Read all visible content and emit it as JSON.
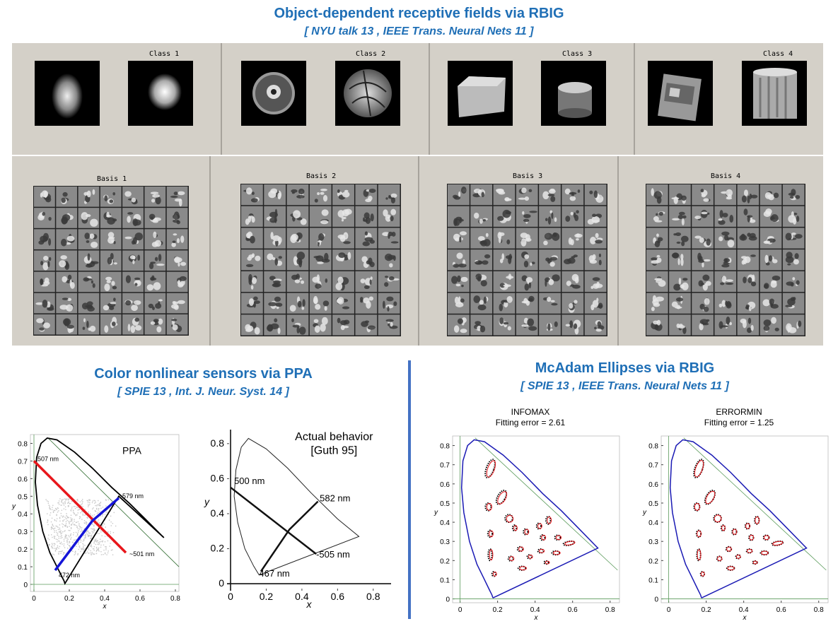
{
  "header": {
    "title": "Object-dependent receptive fields via RBIG",
    "subtitle": "[ NYU talk 13 ,  IEEE Trans. Neural Nets 11 ]"
  },
  "classes": [
    {
      "label": "Class 1"
    },
    {
      "label": "Class 2"
    },
    {
      "label": "Class 3"
    },
    {
      "label": "Class 4"
    }
  ],
  "bases": [
    {
      "label": "Basis 1"
    },
    {
      "label": "Basis 2"
    },
    {
      "label": "Basis 3"
    },
    {
      "label": "Basis 4"
    }
  ],
  "left_section": {
    "title": "Color nonlinear sensors via PPA",
    "subtitle": "[ SPIE 13 , Int. J. Neur. Syst. 14 ]"
  },
  "right_section": {
    "title": "McAdam Ellipses via RBIG",
    "subtitle": "[ SPIE 13 ,  IEEE Trans. Neural Nets 11 ]"
  },
  "colors": {
    "title_blue": "#1f6fb6",
    "divider_blue": "#4472c4",
    "panel_gray": "#d4d0c8",
    "line_red": "#e8161b",
    "line_blue": "#1414d8",
    "locus_blue": "#1a1ab4",
    "ref_green": "#5a9a5a"
  },
  "chart_data": [
    {
      "type": "line",
      "title": "PPA",
      "xlabel": "x",
      "ylabel": "y",
      "xlim": [
        -0.02,
        0.82
      ],
      "ylim": [
        -0.04,
        0.85
      ],
      "x_ticks": [
        "0",
        "0.2",
        "0.4",
        "0.6",
        "0.8"
      ],
      "y_ticks": [
        "0",
        "0.1",
        "0.2",
        "0.3",
        "0.4",
        "0.5",
        "0.6",
        "0.7",
        "0.8"
      ],
      "annotations": [
        "507 nm",
        "579 nm",
        "472 nm",
        "~501 nm"
      ],
      "series": [
        {
          "x": [
            0.0,
            0.52
          ],
          "y": [
            0.7,
            0.18
          ]
        },
        {
          "x": [
            0.12,
            0.33,
            0.48
          ],
          "y": [
            0.08,
            0.36,
            0.49
          ]
        }
      ]
    },
    {
      "type": "line",
      "title": "Actual behavior",
      "subtitle": "[Guth 95]",
      "xlabel": "x",
      "ylabel": "y",
      "xlim": [
        -0.02,
        0.9
      ],
      "ylim": [
        -0.04,
        0.88
      ],
      "x_ticks": [
        "0",
        "0.2",
        "0.4",
        "0.6",
        "0.8"
      ],
      "y_ticks": [
        "0",
        "0.2",
        "0.4",
        "0.6",
        "0.8"
      ],
      "annotations": [
        "500 nm",
        "582 nm",
        "467 nm",
        "-505 nm"
      ],
      "series": [
        {
          "x": [
            0.0,
            0.48
          ],
          "y": [
            0.55,
            0.17
          ]
        },
        {
          "x": [
            0.17,
            0.33,
            0.49
          ],
          "y": [
            0.07,
            0.31,
            0.47
          ]
        }
      ]
    },
    {
      "type": "scatter",
      "title": "INFOMAX",
      "subtitle": "Fitting error = 2.61",
      "xlabel": "x",
      "ylabel": "y",
      "xlim": [
        -0.04,
        0.85
      ],
      "ylim": [
        -0.02,
        0.85
      ],
      "x_ticks": [
        "0",
        "0.2",
        "0.4",
        "0.6",
        "0.8"
      ],
      "y_ticks": [
        "0",
        "0.1",
        "0.2",
        "0.3",
        "0.4",
        "0.5",
        "0.6",
        "0.7",
        "0.8"
      ]
    },
    {
      "type": "scatter",
      "title": "ERRORMIN",
      "subtitle": "Fitting error = 1.25",
      "xlabel": "x",
      "ylabel": "y",
      "xlim": [
        -0.04,
        0.85
      ],
      "ylim": [
        -0.02,
        0.85
      ],
      "x_ticks": [
        "0",
        "0.2",
        "0.4",
        "0.6",
        "0.8"
      ],
      "y_ticks": [
        "0",
        "0.1",
        "0.2",
        "0.3",
        "0.4",
        "0.5",
        "0.6",
        "0.7",
        "0.8"
      ]
    }
  ]
}
